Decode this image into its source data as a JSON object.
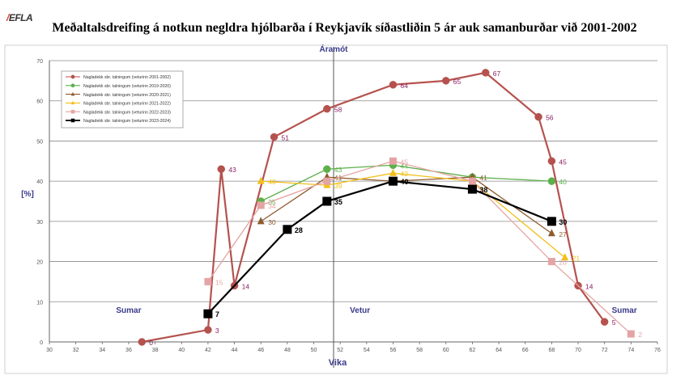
{
  "logo": {
    "text": "EFLA"
  },
  "title": "Meðaltalsdreifing á notkun negldra hjólbarða í Reykjavík síðastliðin 5 ár auk samanburðar við 2001-2002",
  "chart_data": {
    "type": "line",
    "title": "Meðaltalsdreifing á notkun negldra hjólbarða í Reykjavík síðastliðin 5 ár auk samanburðar við 2001-2002",
    "xlabel": "Vika",
    "ylabel": "[%]",
    "xlim": [
      30,
      76
    ],
    "ylim": [
      0,
      70
    ],
    "xticks": [
      30,
      32,
      34,
      36,
      38,
      40,
      42,
      44,
      46,
      48,
      50,
      52,
      54,
      56,
      58,
      60,
      62,
      64,
      66,
      68,
      70,
      72,
      74,
      76
    ],
    "xtick_labels": [
      "30",
      "32",
      "34",
      "36",
      "38",
      "40",
      "42",
      "44",
      "46",
      "48",
      "50",
      "52",
      "54",
      "56",
      "58",
      "60",
      "62",
      "64",
      "66",
      "68",
      "70",
      "72",
      "74",
      "76"
    ],
    "yticks": [
      0,
      10,
      20,
      30,
      40,
      50,
      60,
      70
    ],
    "ytick_labels": [
      "0",
      "10",
      "20",
      "30",
      "40",
      "50",
      "60",
      "70"
    ],
    "grid": true,
    "legend_position": "top-left",
    "annotations": [
      {
        "text": "Áramót",
        "x": 51.5,
        "y": 73
      },
      {
        "text": "Sumar",
        "x": 36,
        "y": 8
      },
      {
        "text": "Vetur",
        "x": 53.5,
        "y": 8
      },
      {
        "text": "Sumar",
        "x": 73.5,
        "y": 8
      }
    ],
    "divider_x": 51.5,
    "series": [
      {
        "name": "Nagladekk sbr. talningum (veturinn 2001-2002)",
        "color": "#b5524e",
        "marker": "circle",
        "label_color": "#8b1e62",
        "x": [
          37,
          42,
          43,
          44,
          47,
          51,
          56,
          60,
          63,
          67,
          68,
          70,
          72
        ],
        "y": [
          0,
          3,
          43,
          14,
          51,
          58,
          64,
          65,
          67,
          56,
          45,
          14,
          5
        ],
        "labels": [
          "0",
          "3",
          "43",
          "14",
          "51",
          "58",
          "64",
          "65",
          "67",
          "56",
          "45",
          "14",
          "5"
        ]
      },
      {
        "name": "Nagladekk sbr. talningum (veturinn 2019-2020)",
        "color": "#5cb04a",
        "marker": "circle",
        "label_color": "#5cb04a",
        "x": [
          46,
          51,
          56,
          62,
          68
        ],
        "y": [
          35,
          43,
          44,
          41,
          40
        ],
        "labels": [
          "35",
          "43",
          "44",
          "",
          "40"
        ]
      },
      {
        "name": "Nagladekk sbr. talningum (veturinn 2020-2021)",
        "color": "#8e5b2e",
        "marker": "triangle",
        "label_color": "#8e5b2e",
        "x": [
          46,
          51,
          56,
          62,
          68
        ],
        "y": [
          30,
          41,
          40,
          41,
          27
        ],
        "labels": [
          "30",
          "41",
          "",
          "41",
          "27"
        ]
      },
      {
        "name": "Nagladekk sbr. talningum (veturinn 2021-2022)",
        "color": "#f2bf1b",
        "marker": "triangle",
        "label_color": "#f2bf1b",
        "x": [
          46,
          51,
          56,
          62,
          69
        ],
        "y": [
          40,
          39,
          42,
          40,
          21
        ],
        "labels": [
          "40",
          "39",
          "42",
          "",
          "21"
        ]
      },
      {
        "name": "Nagladekk sbr. talningum (veturinn 2022-2023)",
        "color": "#e5a4a4",
        "marker": "square",
        "label_color": "#e5a4a4",
        "x": [
          42,
          46,
          51,
          56,
          62,
          68,
          74
        ],
        "y": [
          15,
          34,
          40,
          45,
          40,
          20,
          2
        ],
        "labels": [
          "15",
          "34",
          "",
          "45",
          "",
          "20",
          "2"
        ]
      },
      {
        "name": "Nagladekk sbr. talningum (veturinn 2023-2024)",
        "color": "#000000",
        "marker": "square",
        "label_color": "#000000",
        "x": [
          42,
          48,
          51,
          56,
          62,
          68
        ],
        "y": [
          7,
          28,
          35,
          40,
          38,
          30
        ],
        "labels": [
          "7",
          "28",
          "35",
          "40",
          "38",
          "30"
        ]
      }
    ]
  }
}
